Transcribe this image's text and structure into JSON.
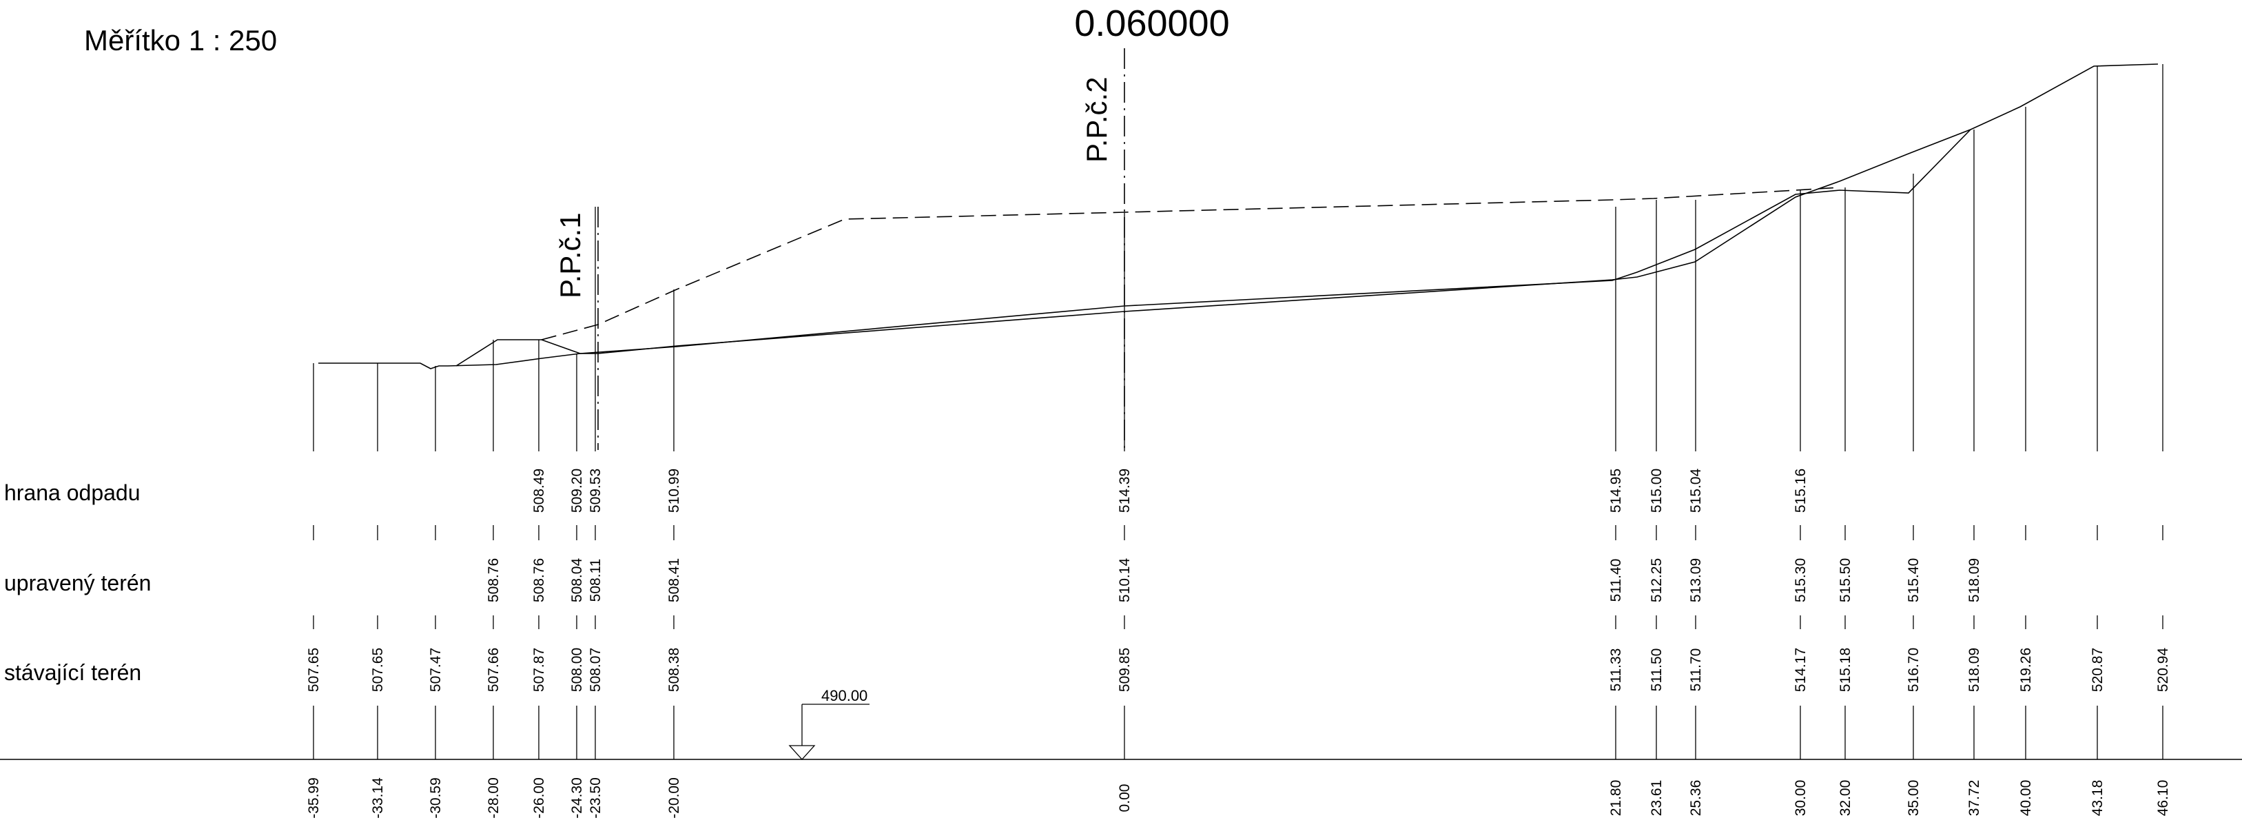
{
  "scale_label": "Měřítko 1 : 250",
  "section_value": "0.060000",
  "markers": [
    {
      "label": "P.P.č.1",
      "station": -23.5
    },
    {
      "label": "P.P.č.2",
      "station": 0.0
    }
  ],
  "row_labels": {
    "hrana_odpadu": "hrana odpadu",
    "upraveny_teren": "upravený terén",
    "stavajici_teren": "stávající terén"
  },
  "datum": {
    "label": "490.00",
    "station": -17.0
  },
  "stations": [
    {
      "d": "-35.99",
      "hrana": null,
      "upraveny": null,
      "stavajici": "507.65"
    },
    {
      "d": "-33.14",
      "hrana": null,
      "upraveny": null,
      "stavajici": "507.65"
    },
    {
      "d": "-30.59",
      "hrana": null,
      "upraveny": null,
      "stavajici": "507.47"
    },
    {
      "d": "-28.00",
      "hrana": null,
      "upraveny": "508.76",
      "stavajici": "507.66"
    },
    {
      "d": "-26.00",
      "hrana": "508.49",
      "upraveny": "508.76",
      "stavajici": "507.87"
    },
    {
      "d": "-24.30",
      "hrana": "509.20",
      "upraveny": "508.04",
      "stavajici": "508.00"
    },
    {
      "d": "-23.50",
      "hrana": "509.53",
      "upraveny": "508.11",
      "stavajici": "508.07"
    },
    {
      "d": "-20.00",
      "hrana": "510.99",
      "upraveny": "508.41",
      "stavajici": "508.38"
    },
    {
      "d": "0.00",
      "hrana": "514.39",
      "upraveny": "510.14",
      "stavajici": "509.85"
    },
    {
      "d": "21.80",
      "hrana": "514.95",
      "upraveny": "511.40",
      "stavajici": "511.33"
    },
    {
      "d": "23.61",
      "hrana": "515.00",
      "upraveny": "512.25",
      "stavajici": "511.50"
    },
    {
      "d": "25.36",
      "hrana": "515.04",
      "upraveny": "513.09",
      "stavajici": "511.70"
    },
    {
      "d": "30.00",
      "hrana": "515.16",
      "upraveny": "515.30",
      "stavajici": "514.17"
    },
    {
      "d": "32.00",
      "hrana": null,
      "upraveny": "515.50",
      "stavajici": "515.18"
    },
    {
      "d": "35.00",
      "hrana": null,
      "upraveny": "515.40",
      "stavajici": "516.70"
    },
    {
      "d": "37.72",
      "hrana": null,
      "upraveny": "518.09",
      "stavajici": "518.09"
    },
    {
      "d": "40.00",
      "hrana": null,
      "upraveny": null,
      "stavajici": "519.26"
    },
    {
      "d": "43.18",
      "hrana": null,
      "upraveny": null,
      "stavajici": "520.87"
    },
    {
      "d": "46.10",
      "hrana": null,
      "upraveny": null,
      "stavajici": "520.94"
    }
  ]
}
